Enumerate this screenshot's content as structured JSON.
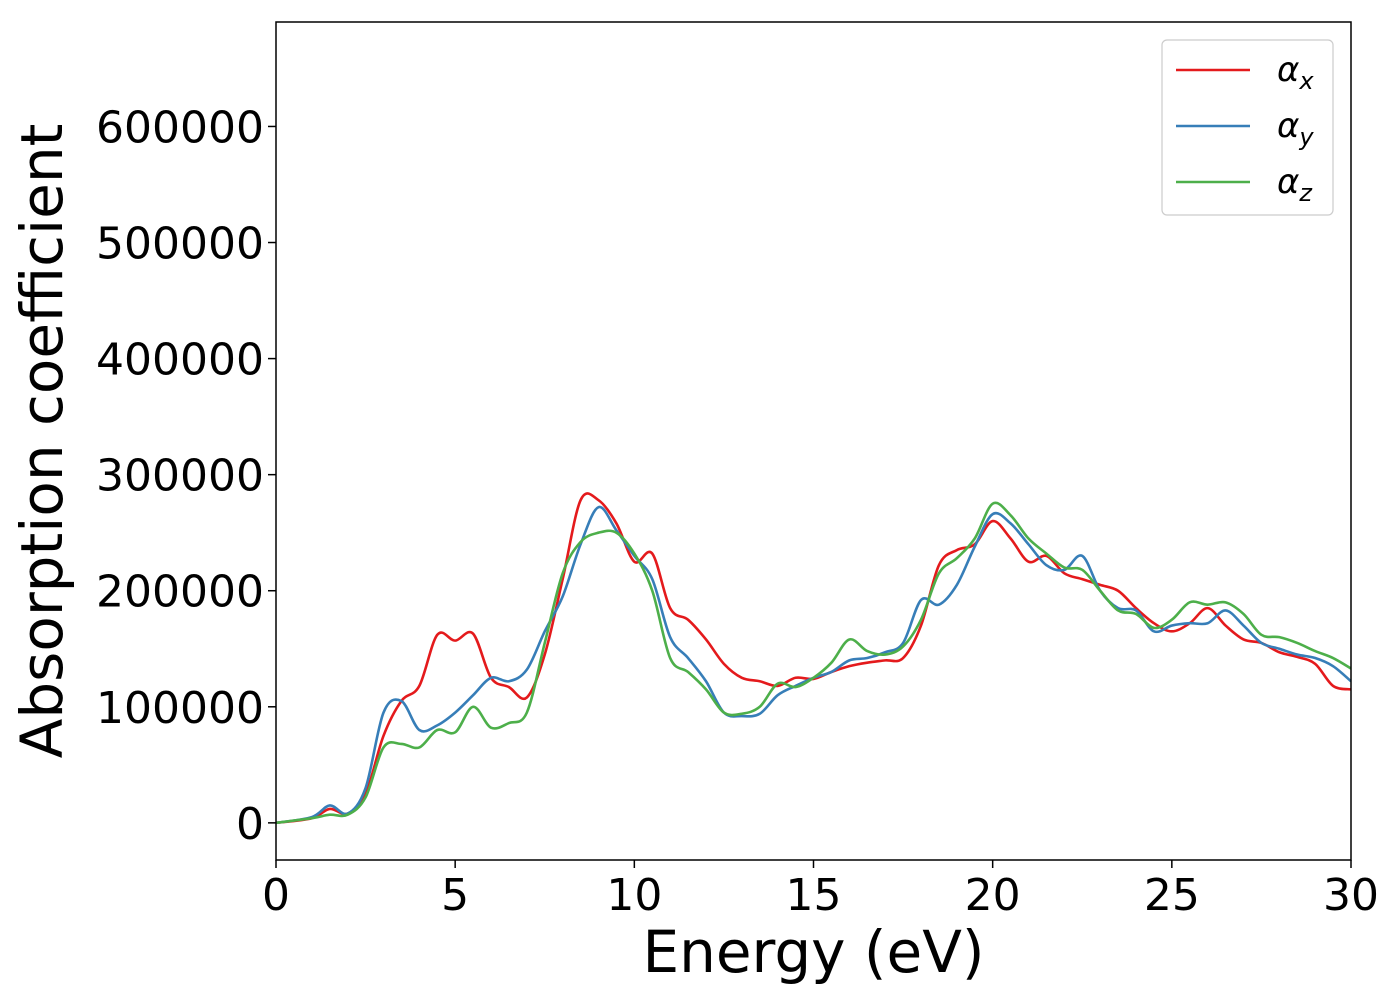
{
  "chart_data": {
    "type": "line",
    "title": "",
    "xlabel": "Energy (eV)",
    "ylabel": "Absorption coefficient",
    "xlim": [
      0,
      30
    ],
    "ylim": [
      -32000,
      690000
    ],
    "xticks": [
      0,
      5,
      10,
      15,
      20,
      25,
      30
    ],
    "yticks": [
      0,
      100000,
      200000,
      300000,
      400000,
      500000,
      600000
    ],
    "xtick_labels": [
      "0",
      "5",
      "10",
      "15",
      "20",
      "25",
      "30"
    ],
    "ytick_labels": [
      "0",
      "100000",
      "200000",
      "300000",
      "400000",
      "500000",
      "600000"
    ],
    "grid": false,
    "legend_position": "top-right",
    "series": [
      {
        "name": "α",
        "subscript": "x",
        "color": "#e41a1c",
        "x": [
          0,
          1,
          1.5,
          2,
          2.5,
          3,
          3.5,
          4,
          4.5,
          5,
          5.5,
          6,
          6.5,
          7,
          7.5,
          8,
          8.5,
          9,
          9.5,
          10,
          10.5,
          11,
          11.5,
          12,
          12.5,
          13,
          13.5,
          14,
          14.5,
          15,
          15.5,
          16,
          16.5,
          17,
          17.5,
          18,
          18.5,
          19,
          19.5,
          20,
          20.5,
          21,
          21.5,
          22,
          22.5,
          23,
          23.5,
          24,
          24.5,
          25,
          25.5,
          26,
          26.5,
          27,
          27.5,
          28,
          28.5,
          29,
          29.5,
          30
        ],
        "y": [
          0,
          4000,
          12000,
          8000,
          25000,
          75000,
          105000,
          118000,
          162000,
          157000,
          163000,
          125000,
          117000,
          108000,
          145000,
          210000,
          278000,
          278000,
          258000,
          225000,
          232000,
          185000,
          175000,
          158000,
          137000,
          125000,
          122000,
          118000,
          125000,
          124000,
          130000,
          135000,
          138000,
          140000,
          142000,
          170000,
          222000,
          235000,
          240000,
          260000,
          245000,
          225000,
          230000,
          215000,
          210000,
          205000,
          200000,
          185000,
          172000,
          165000,
          172000,
          185000,
          170000,
          158000,
          155000,
          147000,
          143000,
          137000,
          118000,
          115000
        ]
      },
      {
        "name": "α",
        "subscript": "y",
        "color": "#377eb8",
        "x": [
          0,
          1,
          1.5,
          2,
          2.5,
          3,
          3.5,
          4,
          4.5,
          5,
          5.5,
          6,
          6.5,
          7,
          7.5,
          8,
          8.5,
          9,
          9.5,
          10,
          10.5,
          11,
          11.5,
          12,
          12.5,
          13,
          13.5,
          14,
          14.5,
          15,
          15.5,
          16,
          16.5,
          17,
          17.5,
          18,
          18.5,
          19,
          19.5,
          20,
          20.5,
          21,
          21.5,
          22,
          22.5,
          23,
          23.5,
          24,
          24.5,
          25,
          25.5,
          26,
          26.5,
          27,
          27.5,
          28,
          28.5,
          29,
          29.5,
          30
        ],
        "y": [
          0,
          5000,
          15000,
          8000,
          30000,
          95000,
          105000,
          80000,
          84000,
          95000,
          110000,
          125000,
          122000,
          132000,
          165000,
          195000,
          240000,
          272000,
          252000,
          230000,
          210000,
          160000,
          142000,
          122000,
          95000,
          92000,
          94000,
          110000,
          118000,
          125000,
          130000,
          140000,
          142000,
          147000,
          155000,
          192000,
          188000,
          205000,
          238000,
          266000,
          258000,
          240000,
          222000,
          218000,
          230000,
          200000,
          185000,
          183000,
          165000,
          170000,
          172000,
          172000,
          183000,
          170000,
          155000,
          150000,
          145000,
          142000,
          135000,
          122000
        ]
      },
      {
        "name": "α",
        "subscript": "z",
        "color": "#4daf4a",
        "x": [
          0,
          1,
          1.5,
          2,
          2.5,
          3,
          3.5,
          4,
          4.5,
          5,
          5.5,
          6,
          6.5,
          7,
          7.5,
          8,
          8.5,
          9,
          9.5,
          10,
          10.5,
          11,
          11.5,
          12,
          12.5,
          13,
          13.5,
          14,
          14.5,
          15,
          15.5,
          16,
          16.5,
          17,
          17.5,
          18,
          18.5,
          19,
          19.5,
          20,
          20.5,
          21,
          21.5,
          22,
          22.5,
          23,
          23.5,
          24,
          24.5,
          25,
          25.5,
          26,
          26.5,
          27,
          27.5,
          28,
          28.5,
          29,
          29.5,
          30
        ],
        "y": [
          0,
          4000,
          7000,
          7000,
          22000,
          65000,
          68000,
          65000,
          80000,
          78000,
          100000,
          82000,
          86000,
          95000,
          155000,
          215000,
          242000,
          250000,
          250000,
          232000,
          200000,
          142000,
          130000,
          115000,
          95000,
          94000,
          100000,
          120000,
          117000,
          125000,
          138000,
          158000,
          148000,
          145000,
          152000,
          175000,
          215000,
          228000,
          245000,
          275000,
          265000,
          245000,
          232000,
          220000,
          218000,
          200000,
          183000,
          180000,
          168000,
          175000,
          190000,
          188000,
          190000,
          180000,
          162000,
          160000,
          155000,
          148000,
          142000,
          133000
        ]
      }
    ]
  }
}
